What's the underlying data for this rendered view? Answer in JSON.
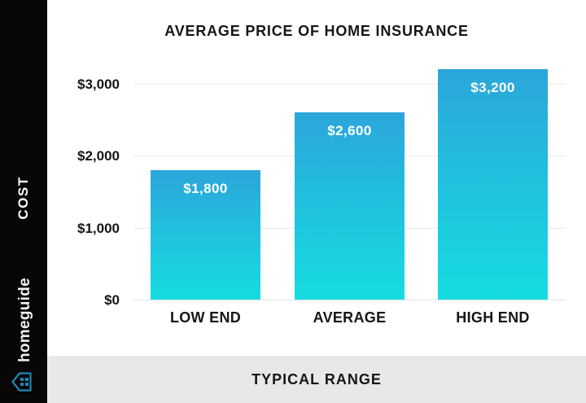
{
  "sidebar": {
    "cost_label": "COST",
    "brand_name": "homeguide",
    "bg_color": "#070707",
    "icon_color": "#1d87b2"
  },
  "chart_data": {
    "type": "bar",
    "title": "AVERAGE PRICE OF HOME INSURANCE",
    "categories": [
      "LOW END",
      "AVERAGE",
      "HIGH END"
    ],
    "values": [
      1800,
      2600,
      3200
    ],
    "value_labels": [
      "$1,800",
      "$2,600",
      "$3,200"
    ],
    "y_ticks": [
      {
        "value": 3000,
        "label": "$3,000"
      },
      {
        "value": 2000,
        "label": "$2,000"
      },
      {
        "value": 1000,
        "label": "$1,000"
      },
      {
        "value": 0,
        "label": "$0"
      }
    ],
    "ylim": [
      0,
      3200
    ],
    "xlabel": "",
    "ylabel": "COST",
    "grid": true,
    "legend": false,
    "bar_gradient_top": "#2ba6da",
    "bar_gradient_bottom": "#16dce1"
  },
  "footer": {
    "label": "TYPICAL RANGE",
    "bg_color": "#e8e8e8"
  }
}
